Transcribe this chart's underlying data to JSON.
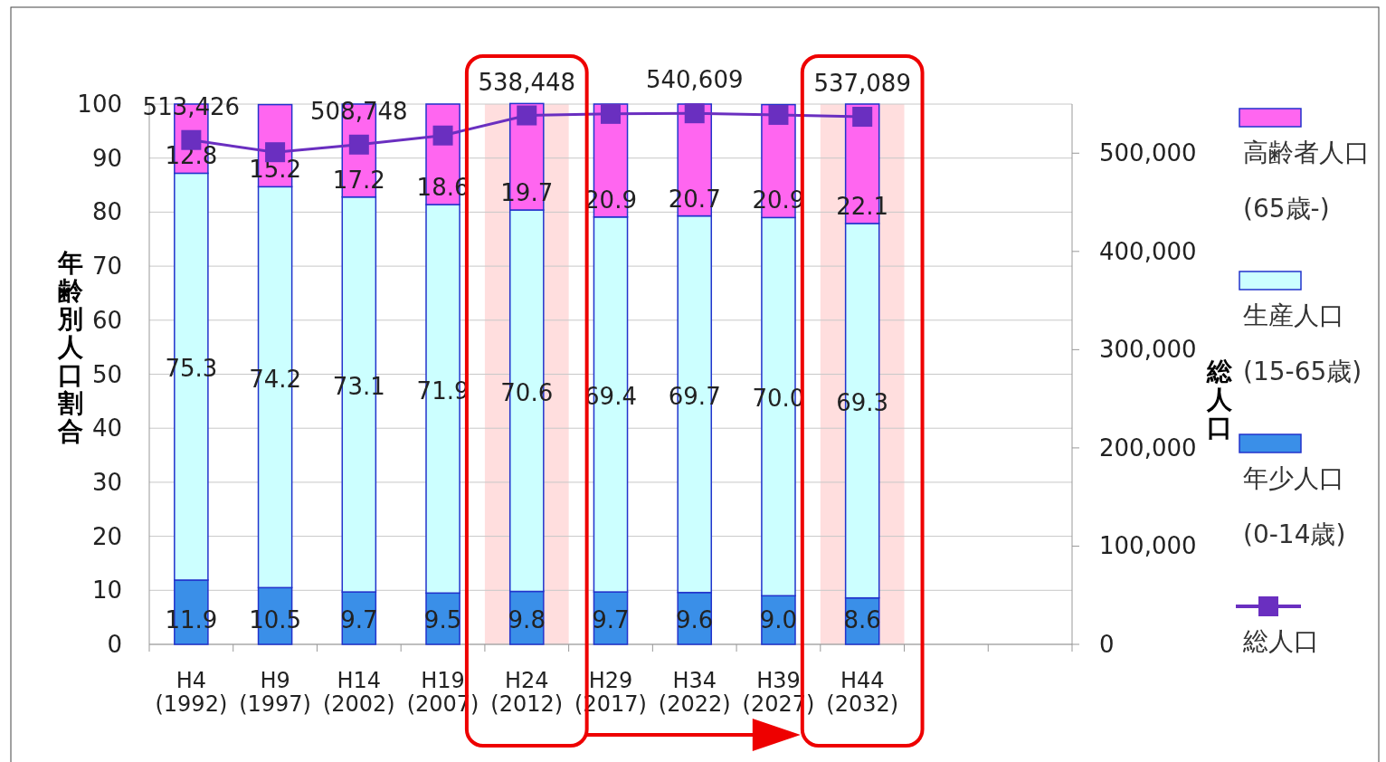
{
  "chart_data": {
    "type": "bar",
    "stacked": true,
    "categories": [
      "H4 (1992)",
      "H9 (1997)",
      "H14 (2002)",
      "H19 (2007)",
      "H24 (2012)",
      "H29 (2017)",
      "H34 (2022)",
      "H39 (2027)",
      "H44 (2032)",
      null,
      null
    ],
    "series": [
      {
        "name": "年少人口 (0-14歳)",
        "color": "#3a8fe8",
        "values": [
          11.9,
          10.5,
          9.7,
          9.5,
          9.8,
          9.7,
          9.6,
          9.0,
          8.6,
          null,
          null
        ],
        "value_labels": [
          "11.9",
          "10.5",
          "9.7",
          "9.5",
          "9.8",
          "9.7",
          "9.6",
          "9.0",
          "8.6",
          null,
          null
        ]
      },
      {
        "name": "生産人口 (15-65歳)",
        "color": "#ccffff",
        "values": [
          75.3,
          74.2,
          73.1,
          71.9,
          70.6,
          69.4,
          69.7,
          70.0,
          69.3,
          null,
          null
        ],
        "value_labels": [
          "75.3",
          "74.2",
          "73.1",
          "71.9",
          "70.6",
          "69.4",
          "69.7",
          "70.0",
          "69.3",
          null,
          null
        ]
      },
      {
        "name": "高齢者人口(65歳-)",
        "color": "#ff66f0",
        "values": [
          12.8,
          15.2,
          17.2,
          18.6,
          19.7,
          20.9,
          20.7,
          20.9,
          22.1,
          null,
          null
        ],
        "value_labels": [
          "12.8",
          "15.2",
          "17.2",
          "18.6",
          "19.7",
          "20.9",
          "20.7",
          "20.9",
          "22.1",
          null,
          null
        ]
      },
      {
        "name": "総人口",
        "type": "line",
        "axis": "y2",
        "color": "#6a2fc0",
        "values": [
          513426,
          501000,
          508748,
          518000,
          538448,
          540000,
          540609,
          539000,
          537089,
          null,
          null
        ],
        "value_labels": [
          "513,426",
          null,
          "508,748",
          null,
          "538,448",
          null,
          "540,609",
          null,
          "537,089",
          null,
          null
        ]
      }
    ],
    "ylabel": "年齢別人口割合",
    "y2label": "総人口",
    "ylim": [
      0,
      100
    ],
    "yticks": [
      0,
      10,
      20,
      30,
      40,
      50,
      60,
      70,
      80,
      90,
      100
    ],
    "y2lim": [
      0,
      550000
    ],
    "y2ticks": [
      {
        "value": 0,
        "label": "0"
      },
      {
        "value": 100000,
        "label": "100,000"
      },
      {
        "value": 200000,
        "label": "200,000"
      },
      {
        "value": 300000,
        "label": "300,000"
      },
      {
        "value": 400000,
        "label": "400,000"
      },
      {
        "value": 500000,
        "label": "500,000"
      }
    ],
    "grid": "y",
    "legend": "right",
    "marker": "square",
    "line_style": "solid",
    "bands": [
      {
        "axis": "x",
        "from": "H24 (2012)",
        "to": "H24 (2012)",
        "color": "#ffdede"
      },
      {
        "axis": "x",
        "from": "H44 (2032)",
        "to": "H44 (2032)",
        "color": "#ffdede"
      }
    ]
  }
}
